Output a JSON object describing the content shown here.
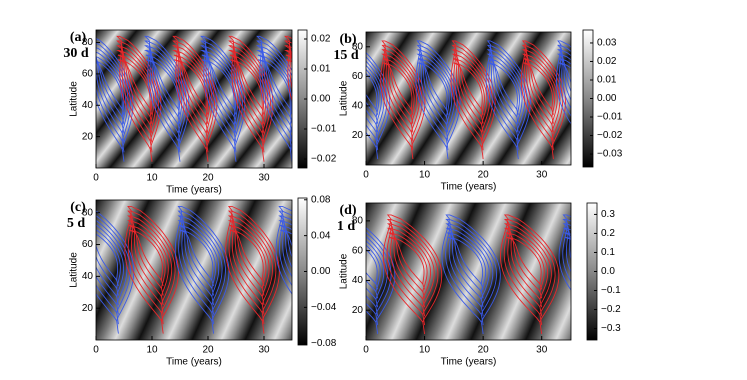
{
  "chart_data": [
    {
      "type": "contour",
      "label": "(a)",
      "period": "30 d",
      "xlabel": "Time (years)",
      "ylabel": "Latitude",
      "xlim": [
        0,
        35
      ],
      "xticks": [
        0,
        10,
        20,
        30
      ],
      "ylim": [
        0,
        88
      ],
      "yticks": [
        20,
        40,
        60,
        80
      ],
      "clim": [
        -0.023,
        0.023
      ],
      "cticks": [
        0.02,
        0.01,
        {
          "value": 0,
          "label": "0.00"
        },
        {
          "value": -0.01,
          "label": "−0.01"
        },
        {
          "value": -0.02,
          "label": "−0.02"
        }
      ]
    },
    {
      "type": "contour",
      "label": "(b)",
      "period": "15 d",
      "xlabel": "Time (years)",
      "ylabel": "Latitude",
      "xlim": [
        0,
        35
      ],
      "xticks": [
        0,
        10,
        20,
        30
      ],
      "ylim": [
        0,
        90
      ],
      "yticks": [
        20,
        40,
        60,
        80
      ],
      "clim": [
        -0.037,
        0.037
      ],
      "cticks": [
        0.03,
        0.02,
        0.01,
        {
          "value": 0,
          "label": "0.00"
        },
        {
          "value": -0.01,
          "label": "−0.01"
        },
        {
          "value": -0.02,
          "label": "−0.02"
        },
        {
          "value": -0.03,
          "label": "−0.03"
        }
      ]
    },
    {
      "type": "contour",
      "label": "(c)",
      "period": "5 d",
      "xlabel": "Time (years)",
      "ylabel": "Latitude",
      "xlim": [
        0,
        35
      ],
      "xticks": [
        0,
        10,
        20,
        30
      ],
      "ylim": [
        0,
        88
      ],
      "yticks": [
        20,
        40,
        60,
        80
      ],
      "clim": [
        -0.082,
        0.082
      ],
      "cticks": [
        0.08,
        0.04,
        {
          "value": 0,
          "label": "0.00"
        },
        {
          "value": -0.04,
          "label": "−0.04"
        },
        {
          "value": -0.08,
          "label": "−0.08"
        }
      ]
    },
    {
      "type": "contour",
      "label": "(d)",
      "period": "1 d",
      "xlabel": "Time (years)",
      "ylabel": "Latitude",
      "xlim": [
        0,
        35
      ],
      "xticks": [
        0,
        10,
        20,
        30
      ],
      "ylim": [
        0,
        92
      ],
      "yticks": [
        20,
        40,
        60,
        80
      ],
      "clim": [
        -0.36,
        0.36
      ],
      "cticks": [
        0.3,
        0.2,
        0.1,
        {
          "value": 0,
          "label": "0.0"
        },
        {
          "value": -0.1,
          "label": "−0.1"
        },
        {
          "value": -0.2,
          "label": "−0.2"
        },
        {
          "value": -0.3,
          "label": "−0.3"
        }
      ]
    }
  ]
}
